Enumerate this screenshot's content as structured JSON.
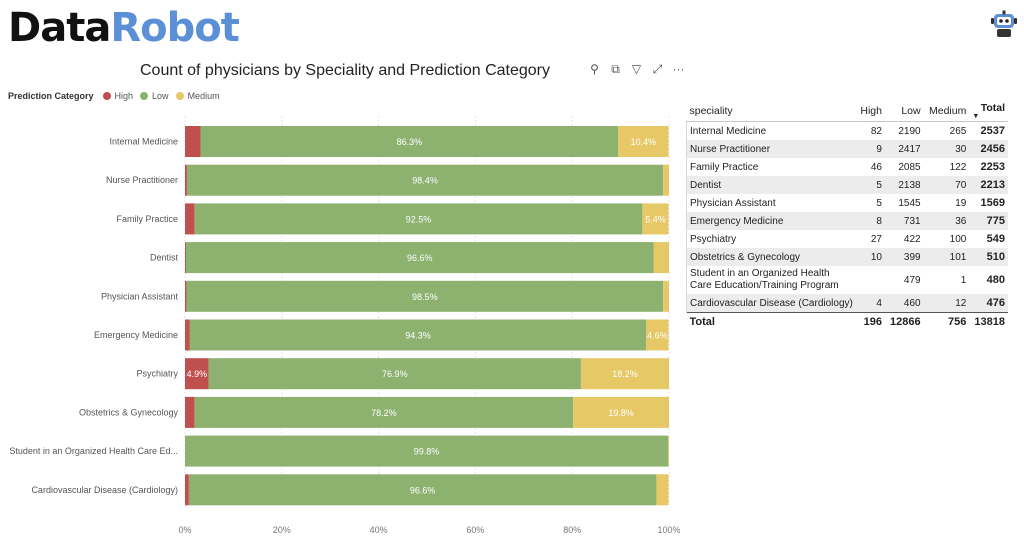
{
  "header": {
    "logo_part1": "Data",
    "logo_part2": "Robot",
    "assistant_icon": "robot-icon"
  },
  "toolbar": {
    "icons": [
      "pin-icon",
      "copy-icon",
      "filter-icon",
      "expand-icon",
      "more-icon"
    ],
    "glyphs": [
      "⚲",
      "⧉",
      "▽",
      "⤢",
      "···"
    ]
  },
  "legend": {
    "title": "Prediction Category",
    "items": [
      {
        "label": "High",
        "color": "#c0504d"
      },
      {
        "label": "Low",
        "color": "#8db26f"
      },
      {
        "label": "Medium",
        "color": "#e6c867"
      }
    ]
  },
  "chart_data": {
    "type": "bar",
    "orientation": "horizontal",
    "stacked": "100%",
    "title": "Count of physicians by Speciality and Prediction Category",
    "categories": [
      "Internal Medicine",
      "Nurse Practitioner",
      "Family Practice",
      "Dentist",
      "Physician Assistant",
      "Emergency Medicine",
      "Psychiatry",
      "Obstetrics & Gynecology",
      "Student in an Organized Health Care Ed...",
      "Cardiovascular Disease (Cardiology)"
    ],
    "series": [
      {
        "name": "High",
        "color": "#c0504d",
        "values": [
          3.2,
          0.4,
          2.0,
          0.2,
          0.3,
          1.0,
          4.9,
          2.0,
          0.0,
          0.8
        ]
      },
      {
        "name": "Low",
        "color": "#8db26f",
        "values": [
          86.3,
          98.4,
          92.5,
          96.6,
          98.5,
          94.3,
          76.9,
          78.2,
          99.8,
          96.6
        ]
      },
      {
        "name": "Medium",
        "color": "#e6c867",
        "values": [
          10.4,
          1.2,
          5.4,
          3.2,
          1.2,
          4.6,
          18.2,
          19.8,
          0.2,
          2.5
        ]
      }
    ],
    "data_labels": [
      [
        "",
        "86.3%",
        "10.4%"
      ],
      [
        "",
        "98.4%",
        ""
      ],
      [
        "",
        "92.5%",
        "5.4%"
      ],
      [
        "",
        "96.6%",
        ""
      ],
      [
        "",
        "98.5%",
        ""
      ],
      [
        "",
        "94.3%",
        "4.6%"
      ],
      [
        "4.9%",
        "76.9%",
        "18.2%"
      ],
      [
        "",
        "78.2%",
        "19.8%"
      ],
      [
        "",
        "99.8%",
        ""
      ],
      [
        "",
        "96.6%",
        ""
      ]
    ],
    "xlim": [
      0,
      100
    ],
    "xticks": [
      "0%",
      "20%",
      "40%",
      "60%",
      "80%",
      "100%"
    ],
    "grid": true,
    "legend_position": "top-left"
  },
  "table": {
    "headers": [
      "speciality",
      "High",
      "Low",
      "Medium",
      "Total"
    ],
    "rows": [
      [
        "Internal Medicine",
        "82",
        "2190",
        "265",
        "2537"
      ],
      [
        "Nurse Practitioner",
        "9",
        "2417",
        "30",
        "2456"
      ],
      [
        "Family Practice",
        "46",
        "2085",
        "122",
        "2253"
      ],
      [
        "Dentist",
        "5",
        "2138",
        "70",
        "2213"
      ],
      [
        "Physician Assistant",
        "5",
        "1545",
        "19",
        "1569"
      ],
      [
        "Emergency Medicine",
        "8",
        "731",
        "36",
        "775"
      ],
      [
        "Psychiatry",
        "27",
        "422",
        "100",
        "549"
      ],
      [
        "Obstetrics & Gynecology",
        "10",
        "399",
        "101",
        "510"
      ],
      [
        "Student in an Organized Health Care Education/Training Program",
        "",
        "479",
        "1",
        "480"
      ],
      [
        "Cardiovascular Disease (Cardiology)",
        "4",
        "460",
        "12",
        "476"
      ]
    ],
    "total": [
      "Total",
      "196",
      "12866",
      "756",
      "13818"
    ],
    "sort_indicator": "▼"
  }
}
